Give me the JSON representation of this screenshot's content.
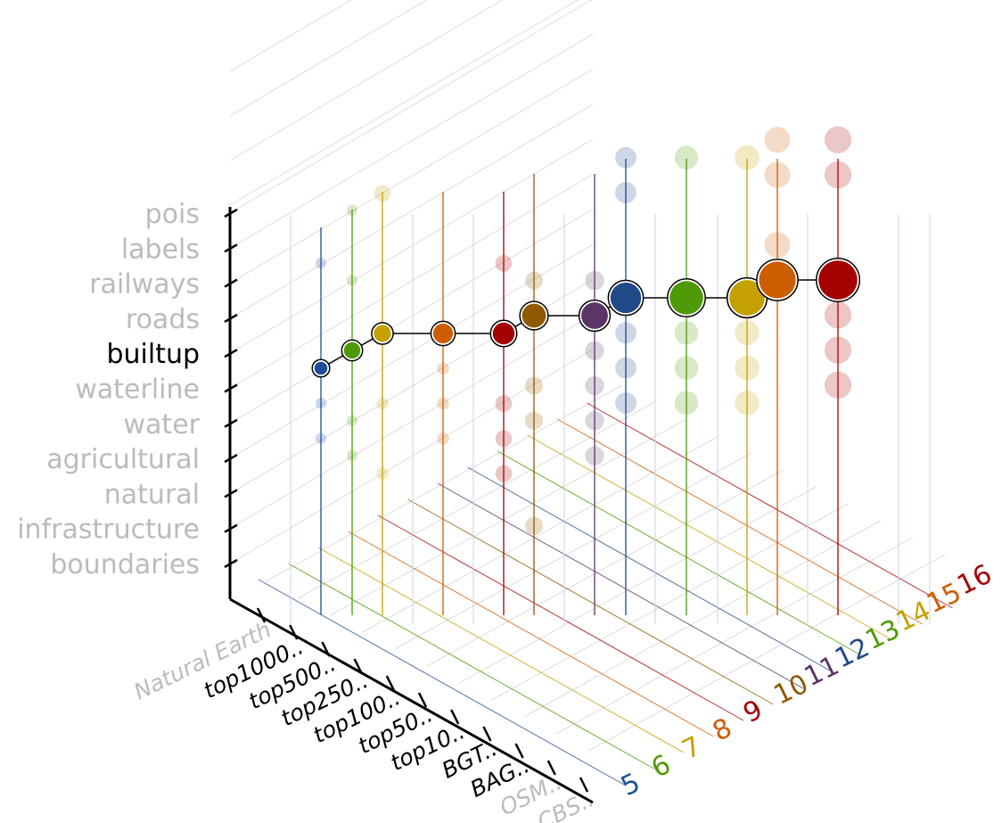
{
  "chart_data": {
    "type": "scatter",
    "title": "",
    "categories": [
      "boundaries",
      "infrastructure",
      "natural",
      "agricultural",
      "water",
      "waterline",
      "builtup",
      "roads",
      "railways",
      "labels",
      "pois"
    ],
    "highlight_category": "builtup",
    "sources": [
      {
        "label": "Natural Earth",
        "active": false
      },
      {
        "label": "top1000..",
        "active": true
      },
      {
        "label": "top500..",
        "active": true
      },
      {
        "label": "top250..",
        "active": true
      },
      {
        "label": "top100..",
        "active": true
      },
      {
        "label": "top50..",
        "active": true
      },
      {
        "label": "top10..",
        "active": true
      },
      {
        "label": "BGT..",
        "active": true
      },
      {
        "label": "BAG..",
        "active": true
      },
      {
        "label": "OSM..",
        "active": false
      },
      {
        "label": "CBS..",
        "active": false
      }
    ],
    "zoom_levels": [
      {
        "label": "5",
        "color": "#1f4e99"
      },
      {
        "label": "6",
        "color": "#4e9a06"
      },
      {
        "label": "7",
        "color": "#c4a000"
      },
      {
        "label": "8",
        "color": "#ce5c00"
      },
      {
        "label": "9",
        "color": "#a40000"
      },
      {
        "label": "10",
        "color": "#8f5902"
      },
      {
        "label": "11",
        "color": "#5c3566"
      },
      {
        "label": "12",
        "color": "#204a87"
      },
      {
        "label": "13",
        "color": "#4e9a06"
      },
      {
        "label": "14",
        "color": "#c4a000"
      },
      {
        "label": "15",
        "color": "#ce5c00"
      },
      {
        "label": "16",
        "color": "#a40000"
      }
    ],
    "highlight_series": {
      "name": "builtup",
      "points": [
        {
          "zoom": "5",
          "size": 1
        },
        {
          "zoom": "6",
          "size": 1.5
        },
        {
          "zoom": "7",
          "size": 1.6
        },
        {
          "zoom": "8",
          "size": 2
        },
        {
          "zoom": "9",
          "size": 2.3
        },
        {
          "zoom": "10",
          "size": 2.6
        },
        {
          "zoom": "11",
          "size": 3
        },
        {
          "zoom": "12",
          "size": 3.6
        },
        {
          "zoom": "13",
          "size": 4
        },
        {
          "zoom": "14",
          "size": 4.3
        },
        {
          "zoom": "15",
          "size": 4.5
        },
        {
          "zoom": "16",
          "size": 4.8
        }
      ]
    },
    "background_points_note_free": [
      {
        "zoom": "5",
        "category": "labels",
        "size": 1
      },
      {
        "zoom": "5",
        "category": "waterline",
        "size": 1
      },
      {
        "zoom": "5",
        "category": "water",
        "size": 1
      },
      {
        "zoom": "6",
        "category": "pois",
        "size": 1
      },
      {
        "zoom": "6",
        "category": "railways",
        "size": 1
      },
      {
        "zoom": "6",
        "category": "water",
        "size": 1
      },
      {
        "zoom": "6",
        "category": "agricultural",
        "size": 1
      },
      {
        "zoom": "7",
        "category": "pois",
        "size": 2
      },
      {
        "zoom": "7",
        "category": "water",
        "size": 1.2
      },
      {
        "zoom": "7",
        "category": "natural",
        "size": 1.2
      },
      {
        "zoom": "8",
        "category": "waterline",
        "size": 1.2
      },
      {
        "zoom": "8",
        "category": "water",
        "size": 1.2
      },
      {
        "zoom": "8",
        "category": "agricultural",
        "size": 1.2
      },
      {
        "zoom": "9",
        "category": "railways",
        "size": 2
      },
      {
        "zoom": "9",
        "category": "water",
        "size": 2
      },
      {
        "zoom": "9",
        "category": "natural",
        "size": 2
      },
      {
        "zoom": "9",
        "category": "agricultural",
        "size": 2
      },
      {
        "zoom": "10",
        "category": "roads",
        "size": 2.2
      },
      {
        "zoom": "10",
        "category": "water",
        "size": 2.2
      },
      {
        "zoom": "10",
        "category": "agricultural",
        "size": 2.2
      },
      {
        "zoom": "10",
        "category": "boundaries",
        "size": 2.2
      },
      {
        "zoom": "11",
        "category": "roads",
        "size": 2.4
      },
      {
        "zoom": "11",
        "category": "waterline",
        "size": 2.4
      },
      {
        "zoom": "11",
        "category": "water",
        "size": 2.4
      },
      {
        "zoom": "11",
        "category": "agricultural",
        "size": 2.4
      },
      {
        "zoom": "11",
        "category": "natural",
        "size": 2.4
      },
      {
        "zoom": "12",
        "category": "pois",
        "size": 2.8
      },
      {
        "zoom": "12",
        "category": "labels",
        "size": 2.8
      },
      {
        "zoom": "12",
        "category": "waterline",
        "size": 2.8
      },
      {
        "zoom": "12",
        "category": "water",
        "size": 2.8
      },
      {
        "zoom": "12",
        "category": "agricultural",
        "size": 2.8
      },
      {
        "zoom": "13",
        "category": "pois",
        "size": 3.2
      },
      {
        "zoom": "13",
        "category": "waterline",
        "size": 3.2
      },
      {
        "zoom": "13",
        "category": "water",
        "size": 3.2
      },
      {
        "zoom": "13",
        "category": "agricultural",
        "size": 3.2
      },
      {
        "zoom": "14",
        "category": "pois",
        "size": 3.4
      },
      {
        "zoom": "14",
        "category": "waterline",
        "size": 3.4
      },
      {
        "zoom": "14",
        "category": "water",
        "size": 3.4
      },
      {
        "zoom": "14",
        "category": "agricultural",
        "size": 3.4
      },
      {
        "zoom": "15",
        "category": "pois",
        "size": 3.6
      },
      {
        "zoom": "15",
        "category": "labels",
        "size": 3.6
      },
      {
        "zoom": "15",
        "category": "roads",
        "size": 3.6
      },
      {
        "zoom": "16",
        "category": "pois",
        "size": 3.8
      },
      {
        "zoom": "16",
        "category": "labels",
        "size": 3.8
      },
      {
        "zoom": "16",
        "category": "waterline",
        "size": 3.8
      },
      {
        "zoom": "16",
        "category": "water",
        "size": 3.8
      },
      {
        "zoom": "16",
        "category": "agricultural",
        "size": 3.8
      }
    ],
    "colors": {
      "axis": "#000000",
      "inactive_label": "#bbbbbb",
      "grid": "#dddddd"
    }
  }
}
